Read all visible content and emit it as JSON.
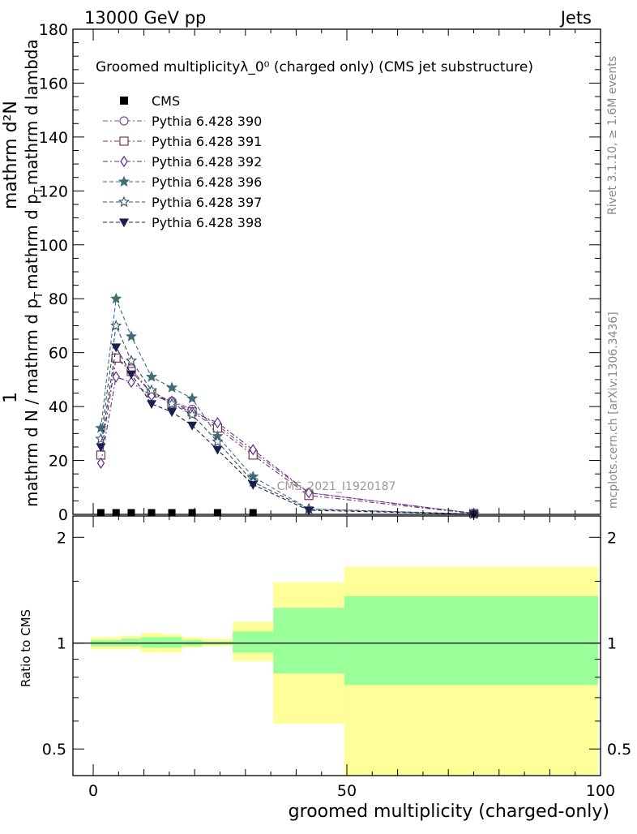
{
  "header": {
    "left": "13000 GeV pp",
    "right": "Jets"
  },
  "side_texts": {
    "rivet": "Rivet 3.1.10, ≥ 1.6M events",
    "mcplots": "mcplots.cern.ch [arXiv:1306.3436]"
  },
  "chart_data": [
    {
      "type": "line",
      "title": "Groomed multiplicityλ_0⁰ (charged only) (CMS jet substructure)",
      "ylabel_numerator": "1",
      "ylabel_parts": [
        "mathrm d N / mathrm d p",
        "T",
        "mathrm d p",
        "T",
        "mathrm d lambda"
      ],
      "ylabel_text": "mathrm d N / mathrm d pT mathrm d pT mathrm d lambda",
      "ylabel_top": "mathrm d²N",
      "ylim": [
        0,
        180
      ],
      "yticks": [
        0,
        20,
        40,
        60,
        80,
        100,
        120,
        140,
        160,
        180
      ],
      "xlim": [
        -4,
        100
      ],
      "watermark": "CMS_2021_I1920187",
      "legend_position": "top-left",
      "cms": {
        "name": "CMS",
        "x": [
          1.5,
          4.5,
          7.5,
          11.5,
          15.5,
          19.5,
          24.5,
          31.5
        ],
        "y": [
          0.6,
          0.6,
          0.6,
          0.6,
          0.6,
          0.6,
          0.6,
          0.6
        ]
      },
      "series": [
        {
          "name": "Pythia 6.428 390",
          "color": "#7b4f8c",
          "marker": "circle-open",
          "dash": "6,3,2,3",
          "x": [
            1.5,
            4.5,
            7.5,
            11.5,
            15.5,
            19.5,
            24.5,
            31.5,
            42.5,
            75.0
          ],
          "y": [
            22,
            58,
            54,
            45,
            42,
            39,
            33,
            23,
            8,
            0.4
          ]
        },
        {
          "name": "Pythia 6.428 391",
          "color": "#7a3550",
          "marker": "square-open",
          "dash": "6,3,2,3",
          "x": [
            1.5,
            4.5,
            7.5,
            11.5,
            15.5,
            19.5,
            24.5,
            31.5,
            42.5,
            75.0
          ],
          "y": [
            22,
            58,
            53,
            45,
            41,
            38,
            32,
            22,
            7,
            0.3
          ]
        },
        {
          "name": "Pythia 6.428 392",
          "color": "#5b2e8e",
          "marker": "diamond-open",
          "dash": "6,3,2,3",
          "x": [
            1.5,
            4.5,
            7.5,
            11.5,
            15.5,
            19.5,
            24.5,
            31.5,
            42.5,
            75.0
          ],
          "y": [
            19,
            51,
            49,
            44,
            42,
            38,
            34,
            24,
            8,
            0.4
          ]
        },
        {
          "name": "Pythia 6.428 396",
          "color": "#3f6e79",
          "marker": "star-filled",
          "dash": "5,3",
          "x": [
            1.5,
            4.5,
            7.5,
            11.5,
            15.5,
            19.5,
            24.5,
            31.5,
            42.5,
            75.0
          ],
          "y": [
            32,
            80,
            66,
            51,
            47,
            43,
            29,
            14,
            2,
            0.1
          ]
        },
        {
          "name": "Pythia 6.428 397",
          "color": "#2d4f70",
          "marker": "star-open",
          "dash": "5,3",
          "x": [
            1.5,
            4.5,
            7.5,
            11.5,
            15.5,
            19.5,
            24.5,
            31.5,
            42.5,
            75.0
          ],
          "y": [
            28,
            70,
            57,
            46,
            41,
            37,
            27,
            12,
            2,
            0.1
          ]
        },
        {
          "name": "Pythia 6.428 398",
          "color": "#1c1f4e",
          "marker": "triangle-down-filled",
          "dash": "5,3",
          "x": [
            1.5,
            4.5,
            7.5,
            11.5,
            15.5,
            19.5,
            24.5,
            31.5,
            42.5,
            75.0
          ],
          "y": [
            25,
            62,
            52,
            41,
            38,
            33,
            24,
            11,
            1.5,
            0.1
          ]
        }
      ]
    },
    {
      "type": "area",
      "ylabel": "Ratio to CMS",
      "xlabel": "groomed multiplicity (charged-only)",
      "log_y": true,
      "ylim": [
        0.42,
        2.3
      ],
      "yticks": [
        0.5,
        1,
        2
      ],
      "ytick_labels": [
        "0.5",
        "1",
        "2"
      ],
      "xlim": [
        -4,
        100
      ],
      "xticks": [
        0,
        50,
        100
      ],
      "xtick_labels": [
        "0",
        "50",
        "100"
      ],
      "reference": 1,
      "bands": [
        {
          "x0": -0.5,
          "x1": 3.0,
          "outer": [
            0.96,
            1.04
          ],
          "inner": [
            0.98,
            1.02
          ]
        },
        {
          "x0": 3.0,
          "x1": 5.5,
          "outer": [
            0.96,
            1.04
          ],
          "inner": [
            0.98,
            1.02
          ]
        },
        {
          "x0": 5.5,
          "x1": 9.5,
          "outer": [
            0.96,
            1.05
          ],
          "inner": [
            0.98,
            1.03
          ]
        },
        {
          "x0": 9.5,
          "x1": 13.5,
          "outer": [
            0.94,
            1.07
          ],
          "inner": [
            0.97,
            1.04
          ]
        },
        {
          "x0": 13.5,
          "x1": 17.5,
          "outer": [
            0.94,
            1.06
          ],
          "inner": [
            0.97,
            1.04
          ]
        },
        {
          "x0": 17.5,
          "x1": 21.5,
          "outer": [
            0.97,
            1.04
          ],
          "inner": [
            0.98,
            1.02
          ]
        },
        {
          "x0": 21.5,
          "x1": 27.5,
          "outer": [
            0.98,
            1.03
          ],
          "inner": [
            0.99,
            1.01
          ]
        },
        {
          "x0": 27.5,
          "x1": 35.5,
          "outer": [
            0.89,
            1.15
          ],
          "inner": [
            0.94,
            1.08
          ]
        },
        {
          "x0": 35.5,
          "x1": 49.5,
          "outer": [
            0.59,
            1.49
          ],
          "inner": [
            0.82,
            1.26
          ]
        },
        {
          "x0": 49.5,
          "x1": 99.5,
          "outer": [
            0.4,
            1.65
          ],
          "inner": [
            0.76,
            1.36
          ]
        }
      ],
      "colors": {
        "outer": "#ffff99",
        "inner": "#99ff99",
        "reference": "#000000"
      }
    }
  ]
}
